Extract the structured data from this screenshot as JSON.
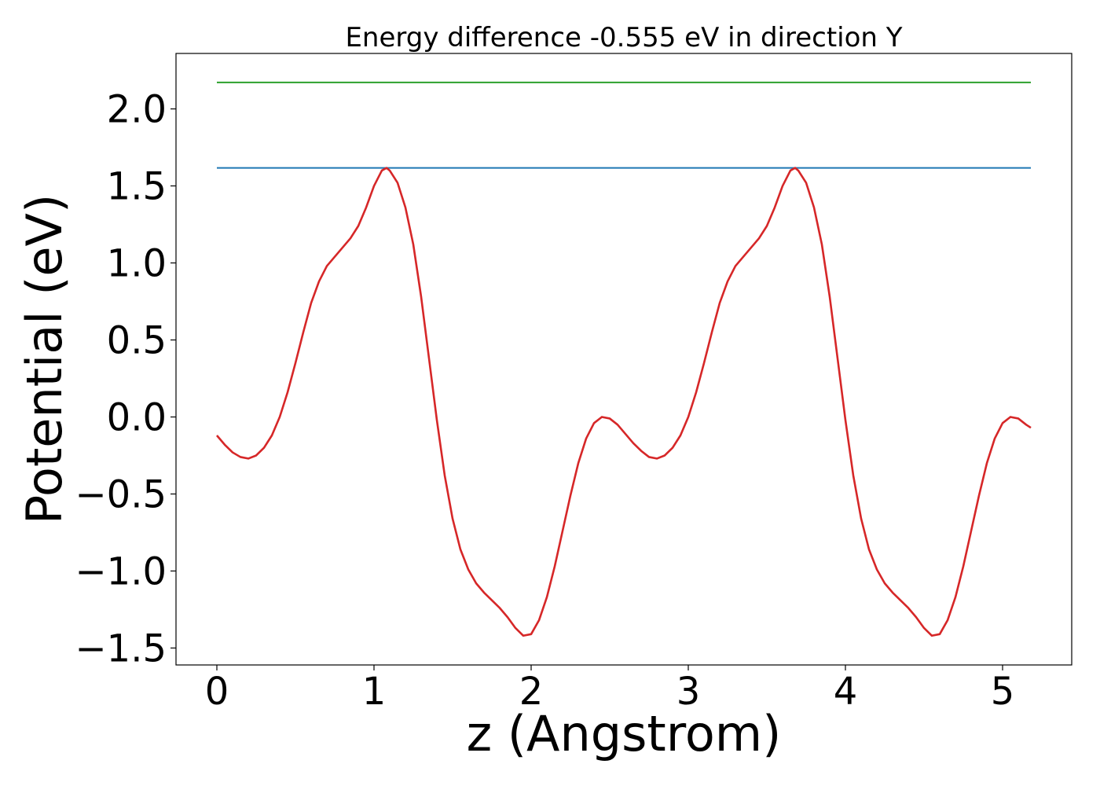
{
  "chart_data": {
    "type": "line",
    "title": "Energy difference -0.555 eV in direction Y",
    "xlabel": "z (Angstrom)",
    "ylabel": "Potential (eV)",
    "xlim": [
      -0.26,
      5.44
    ],
    "ylim": [
      -1.61,
      2.36
    ],
    "xticks": [
      0,
      1,
      2,
      3,
      4,
      5
    ],
    "yticks": [
      -1.5,
      -1.0,
      -0.5,
      0.0,
      0.5,
      1.0,
      1.5,
      2.0
    ],
    "xtick_labels": [
      "0",
      "1",
      "2",
      "3",
      "4",
      "5"
    ],
    "ytick_labels": [
      "−1.5",
      "−1.0",
      "−0.5",
      "0.0",
      "0.5",
      "1.0",
      "1.5",
      "2.0"
    ],
    "grid": false,
    "series": [
      {
        "color": "#d62728",
        "x": [
          0.0,
          0.05,
          0.1,
          0.15,
          0.2,
          0.25,
          0.3,
          0.35,
          0.4,
          0.45,
          0.5,
          0.55,
          0.6,
          0.65,
          0.7,
          0.75,
          0.8,
          0.85,
          0.9,
          0.95,
          1.0,
          1.05,
          1.08,
          1.1,
          1.15,
          1.2,
          1.25,
          1.3,
          1.35,
          1.4,
          1.45,
          1.5,
          1.55,
          1.6,
          1.65,
          1.7,
          1.75,
          1.8,
          1.85,
          1.9,
          1.95,
          2.0,
          2.05,
          2.1,
          2.15,
          2.2,
          2.25,
          2.3,
          2.35,
          2.4,
          2.45,
          2.5,
          2.55,
          2.6,
          2.65,
          2.7,
          2.75,
          2.8,
          2.85,
          2.9,
          2.95,
          3.0,
          3.05,
          3.1,
          3.15,
          3.2,
          3.25,
          3.3,
          3.35,
          3.4,
          3.45,
          3.5,
          3.55,
          3.6,
          3.65,
          3.68,
          3.7,
          3.75,
          3.8,
          3.85,
          3.9,
          3.95,
          4.0,
          4.05,
          4.1,
          4.15,
          4.2,
          4.25,
          4.3,
          4.35,
          4.4,
          4.45,
          4.5,
          4.55,
          4.6,
          4.65,
          4.7,
          4.75,
          4.8,
          4.85,
          4.9,
          4.95,
          5.0,
          5.05,
          5.1,
          5.15,
          5.18
        ],
        "values": [
          -0.12,
          -0.18,
          -0.23,
          -0.26,
          -0.27,
          -0.25,
          -0.2,
          -0.12,
          0.0,
          0.16,
          0.35,
          0.55,
          0.74,
          0.88,
          0.98,
          1.04,
          1.1,
          1.16,
          1.24,
          1.36,
          1.5,
          1.6,
          1.617,
          1.6,
          1.52,
          1.36,
          1.12,
          0.78,
          0.38,
          -0.02,
          -0.38,
          -0.66,
          -0.86,
          -0.99,
          -1.08,
          -1.14,
          -1.19,
          -1.24,
          -1.3,
          -1.37,
          -1.42,
          -1.41,
          -1.32,
          -1.17,
          -0.97,
          -0.74,
          -0.51,
          -0.3,
          -0.14,
          -0.04,
          0.0,
          -0.01,
          -0.05,
          -0.11,
          -0.17,
          -0.22,
          -0.26,
          -0.27,
          -0.25,
          -0.2,
          -0.12,
          0.0,
          0.16,
          0.35,
          0.55,
          0.74,
          0.88,
          0.98,
          1.04,
          1.1,
          1.16,
          1.24,
          1.36,
          1.5,
          1.6,
          1.617,
          1.6,
          1.52,
          1.36,
          1.12,
          0.78,
          0.38,
          -0.02,
          -0.38,
          -0.66,
          -0.86,
          -0.99,
          -1.08,
          -1.14,
          -1.19,
          -1.24,
          -1.3,
          -1.37,
          -1.42,
          -1.41,
          -1.32,
          -1.17,
          -0.97,
          -0.74,
          -0.51,
          -0.3,
          -0.14,
          -0.04,
          0.0,
          -0.01,
          -0.05,
          -0.07
        ]
      },
      {
        "color": "#1f77b4",
        "x": [
          0.0,
          5.18
        ],
        "values": [
          1.617,
          1.617
        ]
      },
      {
        "color": "#2ca02c",
        "x": [
          0.0,
          5.18
        ],
        "values": [
          2.172,
          2.172
        ]
      }
    ]
  }
}
